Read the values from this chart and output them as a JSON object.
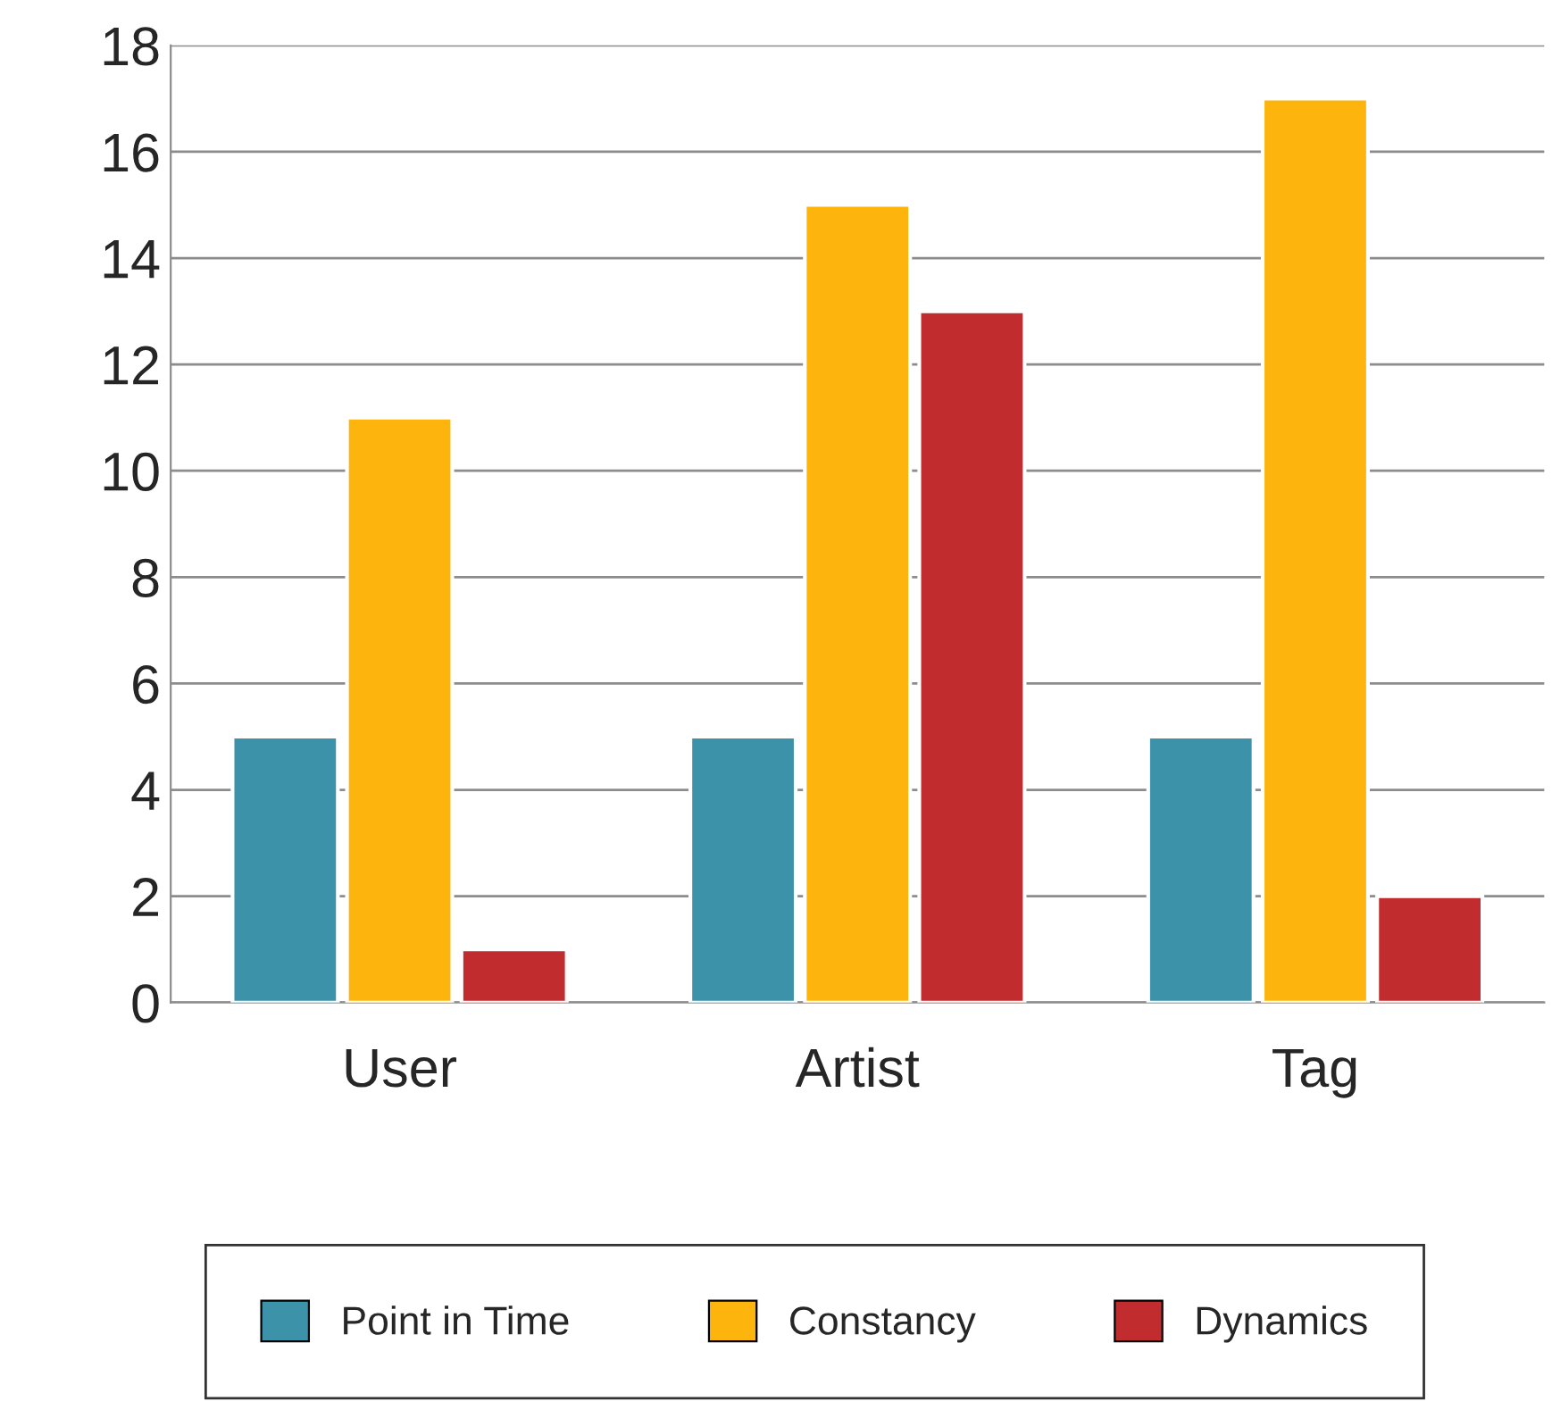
{
  "chart_data": {
    "type": "bar",
    "categories": [
      "User",
      "Artist",
      "Tag"
    ],
    "series": [
      {
        "name": "Point in Time",
        "color": "#3c92a8",
        "values": [
          5,
          5,
          5
        ]
      },
      {
        "name": "Constancy",
        "color": "#fdb50e",
        "values": [
          11,
          15,
          17
        ]
      },
      {
        "name": "Dynamics",
        "color": "#c12d2f",
        "values": [
          1,
          13,
          2
        ]
      }
    ],
    "ylim": [
      0,
      18
    ],
    "yticks": [
      0,
      2,
      4,
      6,
      8,
      10,
      12,
      14,
      16,
      18
    ],
    "grid": "y",
    "legend": "bottom"
  }
}
